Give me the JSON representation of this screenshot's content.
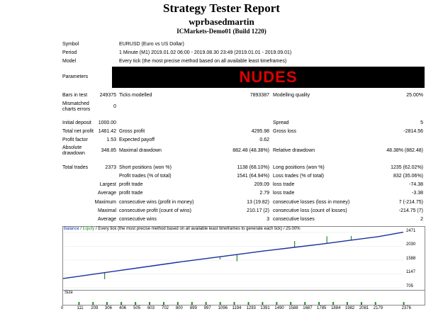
{
  "header": {
    "title": "Strategy Tester Report",
    "expert": "wprbasedmartin",
    "server": "ICMarkets-Demo01 (Build 1220)"
  },
  "settings": {
    "symbol_label": "Symbol",
    "symbol_value": "EURUSD (Euro vs US Dollar)",
    "period_label": "Period",
    "period_value": "1 Minute (M1) 2019.01.02 06:00 - 2019.08.30 23:49 (2019.01.01 - 2019.09.01)",
    "model_label": "Model",
    "model_value": "Every tick (the most precise method based on all available least timeframes)",
    "parameters_label": "Parameters",
    "parameters_banner": "NUDES"
  },
  "stats": {
    "bars_label": "Bars in test",
    "bars_value": "249375",
    "ticks_label": "Ticks modelled",
    "ticks_value": "7893387",
    "quality_label": "Modelling quality",
    "quality_value": "25.00%",
    "mismatched_label_1": "Mismatched",
    "mismatched_label_2": "charts errors",
    "mismatched_value": "0",
    "deposit_label": "Initial deposit",
    "deposit_value": "1000.00",
    "spread_label": "Spread",
    "spread_value": "5",
    "netprofit_label": "Total net profit",
    "netprofit_value": "1481.42",
    "grossprofit_label": "Gross profit",
    "grossprofit_value": "4295.98",
    "grossloss_label": "Gross loss",
    "grossloss_value": "-2814.56",
    "pf_label": "Profit factor",
    "pf_value": "1.53",
    "payoff_label": "Expected payoff",
    "payoff_value": "0.62",
    "absdd_label_1": "Absolute",
    "absdd_label_2": "drawdown",
    "absdd_value": "348.85",
    "maxdd_label": "Maximal drawdown",
    "maxdd_value": "882.48 (48.38%)",
    "reldd_label": "Relative drawdown",
    "reldd_value": "48.38% (882.48)",
    "trades_label": "Total trades",
    "trades_value": "2373",
    "short_label": "Short positions (won %)",
    "short_value": "1138 (68.10%)",
    "long_label": "Long positions (won %)",
    "long_value": "1235 (62.02%)",
    "profit_trades_label": "Profit trades (% of total)",
    "profit_trades_value": "1541 (64.94%)",
    "loss_trades_label": "Loss trades (% of total)",
    "loss_trades_value": "832 (35.06%)",
    "largest_label": "Largest",
    "largest_profit_label": "profit trade",
    "largest_profit_value": "209.09",
    "largest_loss_label": "loss trade",
    "largest_loss_value": "-74.38",
    "average_label": "Average",
    "average_profit_label": "profit trade",
    "average_profit_value": "2.79",
    "average_loss_label": "loss trade",
    "average_loss_value": "-3.38",
    "maximum_label": "Maximum",
    "max_wins_label": "consecutive wins (profit in money)",
    "max_wins_value": "13 (19.82)",
    "max_losses_label": "consecutive losses (loss in money)",
    "max_losses_value": "7 (-214.75)",
    "maximal_label": "Maximal",
    "maximal_profit_label": "consecutive profit (count of wins)",
    "maximal_profit_value": "210.17 (2)",
    "maximal_loss_label": "consecutive loss (count of losses)",
    "maximal_loss_value": "-214.75 (7)",
    "avg2_label": "Average",
    "avg_wins_label": "consecutive wins",
    "avg_wins_value": "3",
    "avg_losses_label": "consecutive losses",
    "avg_losses_value": "2"
  },
  "chart_data": {
    "type": "line",
    "legend_balance": "Balance",
    "legend_sep": " / ",
    "legend_equity": "Equity",
    "legend_rest": " / Every tick (the most precise method based on all available least timeframes to generate each tick) / 25.00%",
    "y_ticks": [
      "2471",
      "2030",
      "1588",
      "1147",
      "705"
    ],
    "y_ticks_num": [
      2471,
      2030,
      1588,
      1147,
      705
    ],
    "ylim": [
      705,
      2471
    ],
    "x_ticks": [
      "0",
      "111",
      "209",
      "306",
      "406",
      "505",
      "603",
      "702",
      "800",
      "899",
      "997",
      "1096",
      "1194",
      "1293",
      "1391",
      "1490",
      "1588",
      "1687",
      "1785",
      "1884",
      "1982",
      "2081",
      "2179",
      "2376"
    ],
    "x_ticks_num": [
      0,
      111,
      209,
      306,
      406,
      505,
      603,
      702,
      800,
      899,
      997,
      1096,
      1194,
      1293,
      1391,
      1490,
      1588,
      1687,
      1785,
      1884,
      1982,
      2081,
      2179,
      2376
    ],
    "xlim": [
      0,
      2373
    ],
    "size_label": "Size",
    "colors": {
      "balance": "#1a2fa0",
      "equity": "#2a8a2a"
    },
    "series": [
      {
        "name": "Balance",
        "x": [
          0,
          200,
          400,
          600,
          800,
          1000,
          1200,
          1400,
          1600,
          1800,
          2000,
          2200,
          2373
        ],
        "y": [
          1000,
          1130,
          1260,
          1390,
          1520,
          1640,
          1760,
          1880,
          1990,
          2100,
          2220,
          2340,
          2481
        ]
      }
    ],
    "equity_dips": [
      {
        "x": 290,
        "y": 980
      },
      {
        "x": 1095,
        "y": 1610
      },
      {
        "x": 1213,
        "y": 1550
      },
      {
        "x": 1615,
        "y": 2200
      },
      {
        "x": 1840,
        "y": 2350
      },
      {
        "x": 2010,
        "y": 2360
      }
    ]
  }
}
